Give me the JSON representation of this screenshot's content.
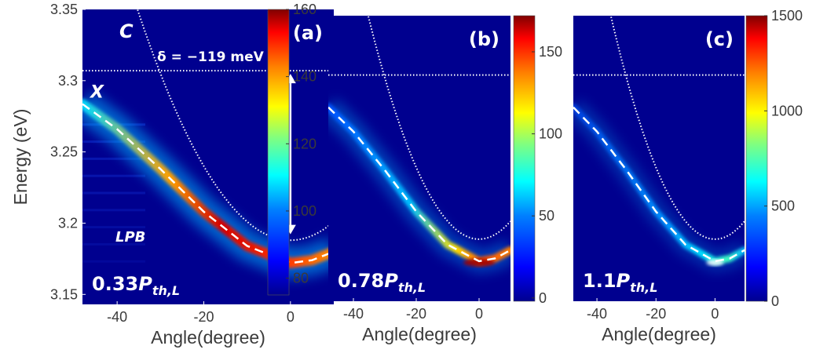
{
  "chart_data": [
    {
      "type": "heatmap",
      "panel_label": "(a)",
      "power_label": {
        "main": "0.33P",
        "sub": "th,L"
      },
      "annotations": {
        "photon_mode": "C",
        "exciton_mode": "X",
        "polariton_branch": "LPB",
        "detuning": "δ = −119 meV"
      },
      "xlabel": "Angle(degree)",
      "ylabel": "Energy (eV)",
      "xlim": [
        -48,
        10
      ],
      "ylim": [
        3.143,
        3.35
      ],
      "x_ticks": [
        "-40",
        "-20",
        "0"
      ],
      "x_tick_values": [
        -40,
        -20,
        0
      ],
      "y_ticks": [
        "3.35",
        "3.3",
        "3.25",
        "3.2",
        "3.15"
      ],
      "y_tick_values": [
        3.35,
        3.3,
        3.25,
        3.2,
        3.15
      ],
      "colorbar": {
        "range": [
          75,
          160
        ],
        "ticks": [
          "160",
          "140",
          "120",
          "100",
          "80"
        ],
        "tick_values": [
          160,
          140,
          120,
          100,
          80
        ]
      },
      "exciton_energy": 3.307,
      "cavity_mode": {
        "min_energy": 3.188,
        "min_angle": 0,
        "curvature": 0.00013
      },
      "lpb_dispersion": {
        "min_energy": 3.172,
        "min_angle": 0,
        "angles": [
          -45,
          -40,
          -30,
          -20,
          -10,
          0,
          5,
          10
        ],
        "energies": [
          3.277,
          3.266,
          3.238,
          3.208,
          3.184,
          3.172,
          3.174,
          3.18
        ]
      }
    },
    {
      "type": "heatmap",
      "panel_label": "(b)",
      "power_label": {
        "main": "0.78P",
        "sub": "th,L"
      },
      "xlabel": "Angle(degree)",
      "xlim": [
        -48,
        10
      ],
      "ylim": [
        3.143,
        3.35
      ],
      "x_ticks": [
        "-40",
        "-20",
        "0"
      ],
      "x_tick_values": [
        -40,
        -20,
        0
      ],
      "colorbar": {
        "range": [
          -2,
          172
        ],
        "ticks": [
          "150",
          "100",
          "50",
          "0"
        ],
        "tick_values": [
          150,
          100,
          50,
          0
        ]
      },
      "exciton_energy": 3.307,
      "cavity_mode": {
        "min_energy": 3.188,
        "min_angle": 0,
        "curvature": 0.00013
      },
      "lpb_dispersion": {
        "min_energy": 3.172,
        "min_angle": 0,
        "angles": [
          -45,
          -40,
          -30,
          -20,
          -10,
          0,
          5,
          10
        ],
        "energies": [
          3.277,
          3.266,
          3.238,
          3.208,
          3.184,
          3.172,
          3.174,
          3.18
        ]
      }
    },
    {
      "type": "heatmap",
      "panel_label": "(c)",
      "power_label": {
        "main": "1.1P",
        "sub": "th,L"
      },
      "xlabel": "Angle(degree)",
      "xlim": [
        -48,
        10
      ],
      "ylim": [
        3.143,
        3.35
      ],
      "x_ticks": [
        "-40",
        "-20",
        "0"
      ],
      "x_tick_values": [
        -40,
        -20,
        0
      ],
      "colorbar": {
        "range": [
          0,
          1500
        ],
        "ticks": [
          "1500",
          "1000",
          "500",
          "0"
        ],
        "tick_values": [
          1500,
          1000,
          500,
          0
        ]
      },
      "exciton_energy": 3.307,
      "cavity_mode": {
        "min_energy": 3.188,
        "min_angle": 0,
        "curvature": 0.00013
      },
      "lpb_dispersion": {
        "min_energy": 3.172,
        "min_angle": 0,
        "angles": [
          -45,
          -40,
          -30,
          -20,
          -10,
          0,
          5,
          10
        ],
        "energies": [
          3.277,
          3.266,
          3.238,
          3.208,
          3.184,
          3.172,
          3.174,
          3.18
        ]
      }
    }
  ],
  "colors": {
    "background_low": "#00008f",
    "jet": [
      "#00008f",
      "#0000ff",
      "#0080ff",
      "#00ffff",
      "#80ff80",
      "#ffff00",
      "#ff8000",
      "#ff0000",
      "#800000"
    ],
    "overlay_lines": "#ffffff",
    "axis_text": "#3a3a3a"
  }
}
